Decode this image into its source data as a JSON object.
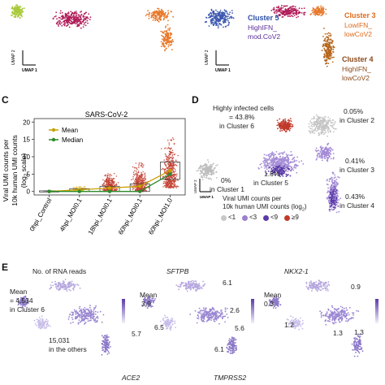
{
  "top": {
    "umap_left": {
      "y_axis": "UMAP 2",
      "x_axis": "UMAP 1"
    },
    "umap_right": {
      "y_axis": "UMAP 2",
      "x_axis": "UMAP 1"
    },
    "cluster5": {
      "title": "Cluster 5",
      "line1": "HighIFN_",
      "line2": "mod.CoV2"
    },
    "cluster3": {
      "title": "Cluster 3",
      "line1": "LowIFN_",
      "line2": "lowCoV2"
    },
    "cluster4": {
      "title": "Cluster 4",
      "line1": "HighIFN_",
      "line2": "lowCoV2"
    }
  },
  "panel_c": {
    "letter": "C",
    "title": "SARS-CoV-2",
    "ylabel_lines": [
      "Viral UMI counts per",
      "10k human UMI counts",
      "(log",
      "2",
      " scale)"
    ],
    "legend": {
      "mean": "Mean",
      "median": "Median"
    },
    "colors": {
      "mean": "#c8a000",
      "median": "#2a8a2a"
    }
  },
  "panel_d": {
    "letter": "D",
    "highly_infected_line1": "Highly infected cells",
    "highly_infected_line2": "= 43.8%",
    "highly_infected_line3": "in Cluster 6",
    "c2_line1": "0.05%",
    "c2_line2": "in Cluster 2",
    "c5_line1": "1.6%",
    "c5_line2": "in Cluster 5",
    "c3_line1": "0.41%",
    "c3_line2": "in Cluster 3",
    "c4_line1": "0.43%",
    "c4_line2": "in Cluster 4",
    "c1_line1": "0%",
    "c1_line2": "in Cluster 1",
    "legend_line1": "Viral UMI counts per",
    "legend_line2": "10k human UMI counts (log",
    "legend_sub": "2",
    "legend_close": ")",
    "umap_y": "UMAP 2",
    "umap_x": "UMAP 1",
    "legend_items": [
      {
        "label": "<1",
        "color": "#c8c8c8"
      },
      {
        "label": "<3",
        "color": "#9b7fd0"
      },
      {
        "label": "<9",
        "color": "#5a3aa8"
      },
      {
        "label": "≥9",
        "color": "#c0392b"
      }
    ]
  },
  "panel_e": {
    "letter": "E",
    "label_reads": "No. of RNA reads",
    "label_sftpb": "SFTPB",
    "label_nkx": "NKX2-1",
    "label_ace2": "ACE2",
    "label_tmprss2": "TMPRSS2",
    "reads_mean_line1": "Mean",
    "reads_mean_line2": "= 4,534",
    "reads_mean_line3": "in Cluster 6",
    "reads_others_line1": "15,031",
    "reads_others_line2": "in the others",
    "sftpb_mean": "Mean",
    "sftpb_vals": [
      "3.9",
      "6.1",
      "2.6",
      "6.5",
      "5.6",
      "5.7",
      "6.1"
    ],
    "nkx_mean": "Mean",
    "nkx_vals": [
      "0.3",
      "0.9",
      "1.2",
      "1.3",
      "1.3"
    ]
  },
  "chart_data": {
    "type": "scatter",
    "title": "SARS-CoV-2",
    "ylabel": "Viral UMI counts per 10k human UMI counts (log2 scale)",
    "categories": [
      "0hpi_Control",
      "4hpi_MOI0.1",
      "18hpi_MOI0.1",
      "60hpi_MOI0.1",
      "60hpi_MOI1.0"
    ],
    "yticks": [
      0,
      5,
      10,
      15,
      20
    ],
    "ylim": [
      -1,
      21
    ],
    "series": [
      {
        "name": "Mean",
        "values": [
          0.0,
          0.5,
          1.0,
          1.5,
          6.0
        ]
      },
      {
        "name": "Median",
        "values": [
          0.0,
          0.0,
          0.0,
          0.0,
          5.0
        ]
      }
    ],
    "legend": "top-left",
    "grid": false
  }
}
